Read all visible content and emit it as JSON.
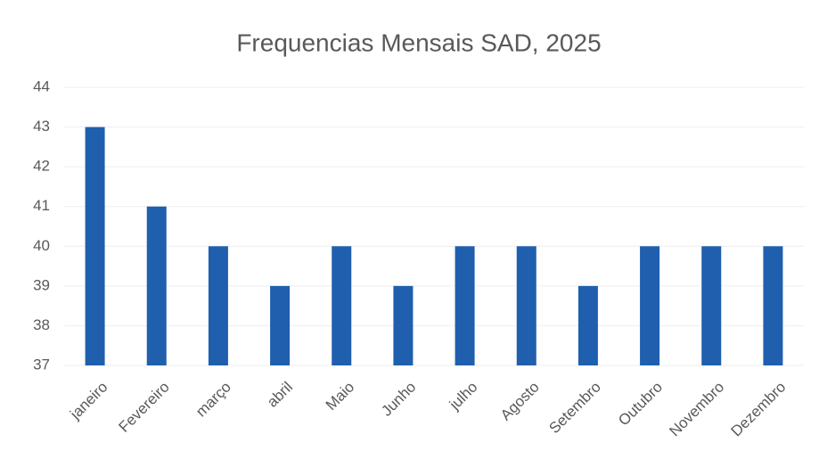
{
  "chart_data": {
    "type": "bar",
    "title": "Frequencias Mensais SAD, 2025",
    "categories": [
      "janeiro",
      "Fevereiro",
      "março",
      "abril",
      "Maio",
      "Junho",
      "julho",
      "Agosto",
      "Setembro",
      "Outubro",
      "Novembro",
      "Dezembro"
    ],
    "values": [
      43,
      41,
      40,
      39,
      40,
      39,
      40,
      40,
      39,
      40,
      40,
      40
    ],
    "color": "#1f5fae",
    "ylim": [
      37,
      44
    ],
    "yticks": [
      37,
      38,
      39,
      40,
      41,
      42,
      43,
      44
    ],
    "grid": true
  }
}
